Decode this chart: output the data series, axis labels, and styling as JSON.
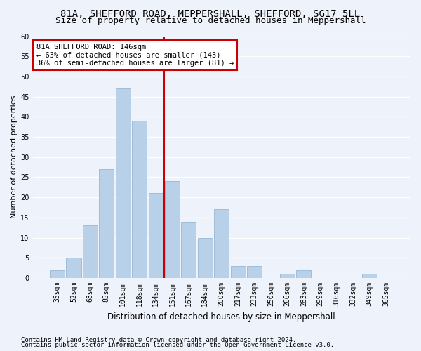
{
  "title1": "81A, SHEFFORD ROAD, MEPPERSHALL, SHEFFORD, SG17 5LL",
  "title2": "Size of property relative to detached houses in Meppershall",
  "xlabel": "Distribution of detached houses by size in Meppershall",
  "ylabel": "Number of detached properties",
  "categories": [
    "35sqm",
    "52sqm",
    "68sqm",
    "85sqm",
    "101sqm",
    "118sqm",
    "134sqm",
    "151sqm",
    "167sqm",
    "184sqm",
    "200sqm",
    "217sqm",
    "233sqm",
    "250sqm",
    "266sqm",
    "283sqm",
    "299sqm",
    "316sqm",
    "332sqm",
    "349sqm",
    "365sqm"
  ],
  "values": [
    2,
    5,
    13,
    27,
    47,
    39,
    21,
    24,
    14,
    10,
    17,
    3,
    3,
    0,
    1,
    2,
    0,
    0,
    0,
    1,
    0
  ],
  "bar_color": "#b8d0e8",
  "bar_edgecolor": "#a0bdd8",
  "background_color": "#eef2fb",
  "grid_color": "#ffffff",
  "vline_color": "#cc0000",
  "annotation_text": "81A SHEFFORD ROAD: 146sqm\n← 63% of detached houses are smaller (143)\n36% of semi-detached houses are larger (81) →",
  "annotation_box_facecolor": "#ffffff",
  "annotation_box_edgecolor": "#cc0000",
  "ylim": [
    0,
    60
  ],
  "yticks": [
    0,
    5,
    10,
    15,
    20,
    25,
    30,
    35,
    40,
    45,
    50,
    55,
    60
  ],
  "footnote1": "Contains HM Land Registry data © Crown copyright and database right 2024.",
  "footnote2": "Contains public sector information licensed under the Open Government Licence v3.0.",
  "title1_fontsize": 10,
  "title2_fontsize": 9,
  "xlabel_fontsize": 8.5,
  "ylabel_fontsize": 8,
  "tick_fontsize": 7,
  "annotation_fontsize": 7.5,
  "footnote_fontsize": 6.5
}
